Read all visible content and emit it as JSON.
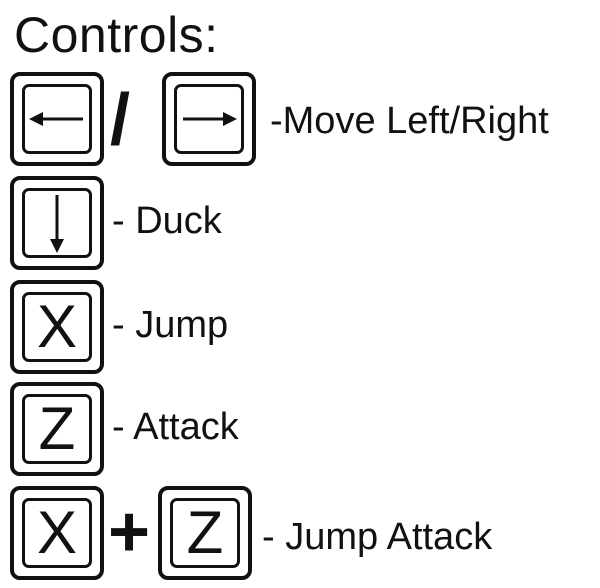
{
  "title": "Controls:",
  "rows": [
    {
      "keys": [
        {
          "icon": "left-arrow-icon"
        },
        {
          "icon": "right-arrow-icon"
        }
      ],
      "separator": "/",
      "label": "-Move Left/Right"
    },
    {
      "keys": [
        {
          "icon": "down-arrow-icon"
        }
      ],
      "label": "- Duck"
    },
    {
      "keys": [
        {
          "letter": "X"
        }
      ],
      "label": "- Jump"
    },
    {
      "keys": [
        {
          "letter": "Z"
        }
      ],
      "label": "- Attack"
    },
    {
      "keys": [
        {
          "letter": "X"
        },
        {
          "letter": "Z"
        }
      ],
      "separator": "+",
      "label": "- Jump Attack"
    }
  ]
}
